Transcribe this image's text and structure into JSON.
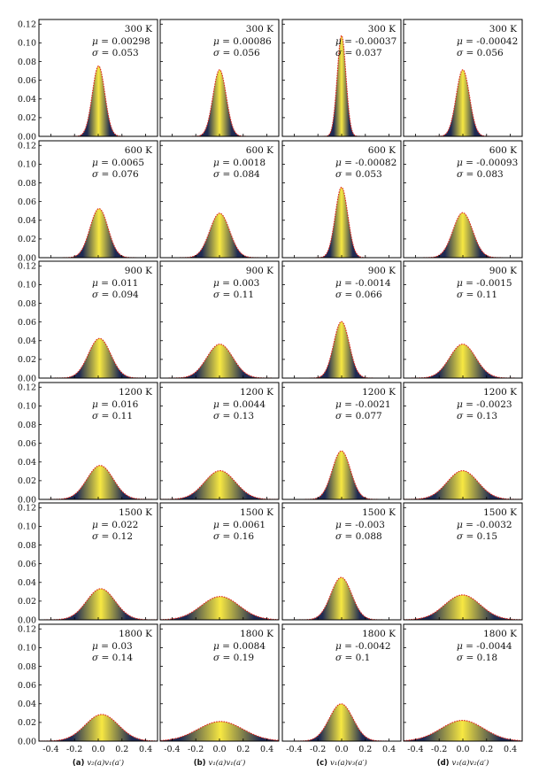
{
  "colors": {
    "curve": "#e0211b",
    "center": "#f7e842",
    "tail": "#1f2a52",
    "axis": "#000000"
  },
  "columns": [
    {
      "label_prefix": "(a)",
      "label_math": "v₂(a)v₁(a′)"
    },
    {
      "label_prefix": "(b)",
      "label_math": "v₁(a)v₁(a′)"
    },
    {
      "label_prefix": "(c)",
      "label_math": "v₁(a)v₃(a′)"
    },
    {
      "label_prefix": "(d)",
      "label_math": "v₁(a)v₂(a′)"
    }
  ],
  "chart_data": {
    "type": "area",
    "layout": "6 rows (temperatures) x 4 columns (pair types) of normalized distributions",
    "xlim": [
      -0.5,
      0.5
    ],
    "ylim": [
      0,
      0.125
    ],
    "xticks": [
      -0.4,
      -0.2,
      0.0,
      0.2,
      0.4
    ],
    "xtick_labels": [
      "-0.4",
      "-0.2",
      "0.0",
      "0.2",
      "0.4"
    ],
    "yticks": [
      0,
      0.02,
      0.04,
      0.06,
      0.08,
      0.1,
      0.12
    ],
    "ytick_labels": [
      "0.00",
      "0.02",
      "0.04",
      "0.06",
      "0.08",
      "0.10",
      "0.12"
    ],
    "rows": [
      {
        "temperature": "300 K",
        "panels": [
          {
            "mu": "0.00298",
            "sigma": "0.053"
          },
          {
            "mu": "0.00086",
            "sigma": "0.056"
          },
          {
            "mu": "-0.00037",
            "sigma": "0.037"
          },
          {
            "mu": "-0.00042",
            "sigma": "0.056"
          }
        ]
      },
      {
        "temperature": "600 K",
        "panels": [
          {
            "mu": "0.0065",
            "sigma": "0.076"
          },
          {
            "mu": "0.0018",
            "sigma": "0.084"
          },
          {
            "mu": "-0.00082",
            "sigma": "0.053"
          },
          {
            "mu": "-0.00093",
            "sigma": "0.083"
          }
        ]
      },
      {
        "temperature": "900 K",
        "panels": [
          {
            "mu": "0.011",
            "sigma": "0.094"
          },
          {
            "mu": "0.003",
            "sigma": "0.11"
          },
          {
            "mu": "-0.0014",
            "sigma": "0.066"
          },
          {
            "mu": "-0.0015",
            "sigma": "0.11"
          }
        ]
      },
      {
        "temperature": "1200 K",
        "panels": [
          {
            "mu": "0.016",
            "sigma": "0.11"
          },
          {
            "mu": "0.0044",
            "sigma": "0.13"
          },
          {
            "mu": "-0.0021",
            "sigma": "0.077"
          },
          {
            "mu": "-0.0023",
            "sigma": "0.13"
          }
        ]
      },
      {
        "temperature": "1500 K",
        "panels": [
          {
            "mu": "0.022",
            "sigma": "0.12"
          },
          {
            "mu": "0.0061",
            "sigma": "0.16"
          },
          {
            "mu": "-0.003",
            "sigma": "0.088"
          },
          {
            "mu": "-0.0032",
            "sigma": "0.15"
          }
        ]
      },
      {
        "temperature": "1800 K",
        "panels": [
          {
            "mu": "0.03",
            "sigma": "0.14"
          },
          {
            "mu": "0.0084",
            "sigma": "0.19"
          },
          {
            "mu": "-0.0042",
            "sigma": "0.1"
          },
          {
            "mu": "-0.0044",
            "sigma": "0.18"
          }
        ]
      }
    ]
  }
}
